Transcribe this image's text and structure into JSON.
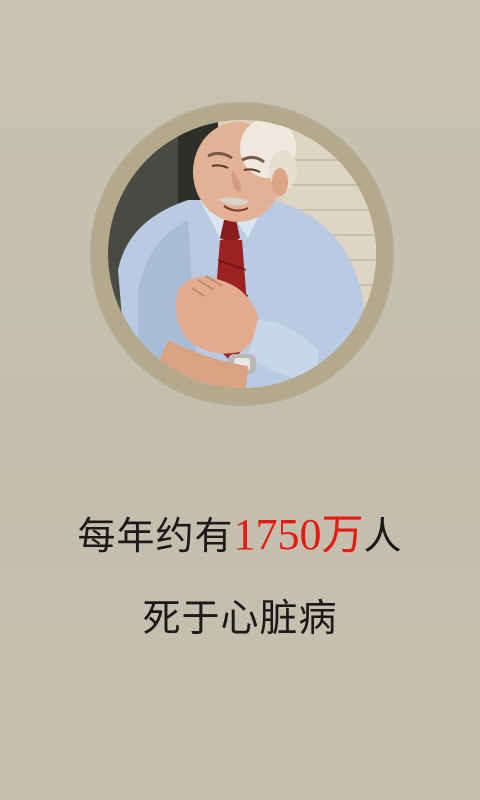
{
  "slide": {
    "photo_icon": "man-clutching-chest-photo",
    "colors": {
      "background": "#c6c1b1",
      "ring": "#b5a98c",
      "accent": "#e41a13",
      "text": "#1a1a1a"
    },
    "headline": {
      "lead": "每年约有",
      "number": "1750",
      "unit_wan": "万",
      "unit_person": "人"
    },
    "subline": "死于心脏病"
  }
}
